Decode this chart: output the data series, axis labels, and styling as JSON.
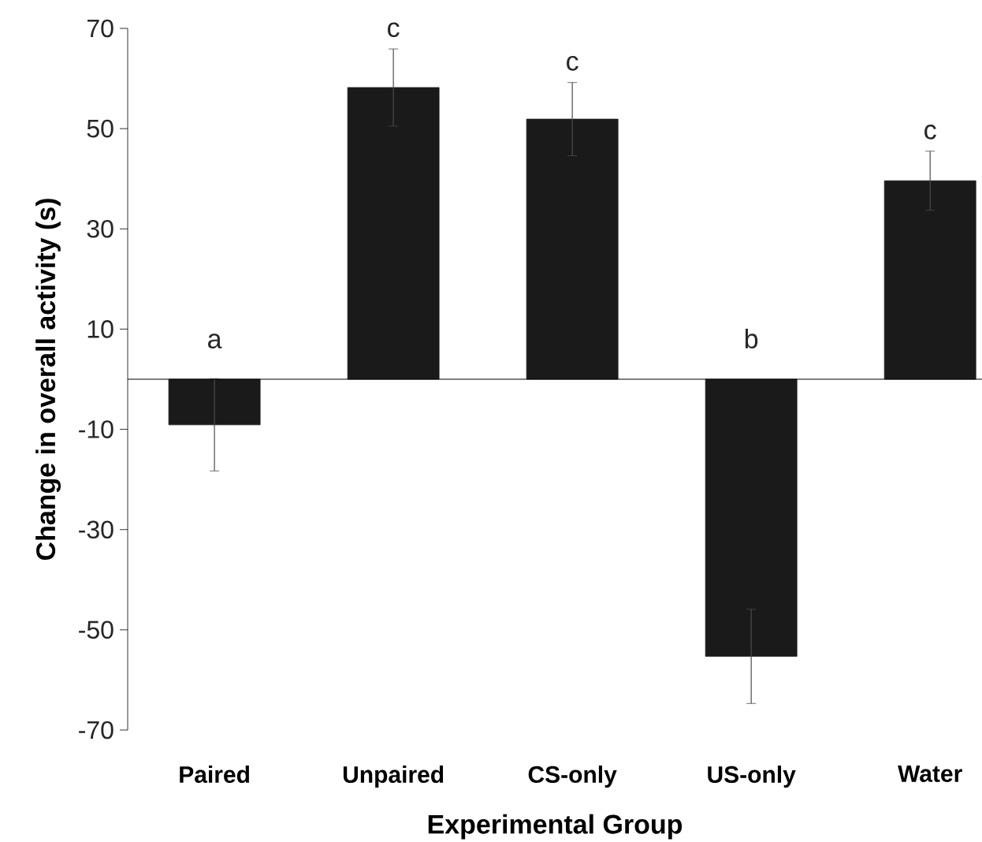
{
  "chart_data": {
    "type": "bar",
    "xlabel": "Experimental Group",
    "ylabel": "Change in overall activity (s)",
    "categories": [
      "Paired",
      "Unpaired",
      "CS-only",
      "US-only",
      "Water"
    ],
    "values": [
      -9.1,
      58.2,
      51.9,
      -55.3,
      39.6
    ],
    "errors": [
      9.2,
      7.7,
      7.3,
      9.4,
      5.9
    ],
    "color": "#1a1a1a",
    "ylim": [
      -70,
      70
    ],
    "yticks": [
      -70,
      -50,
      -30,
      -10,
      10,
      30,
      50,
      70
    ],
    "ref_lines": [
      {
        "axis": "y",
        "value": 0
      }
    ],
    "annotations": [
      "a",
      "c",
      "c",
      "b",
      "c"
    ]
  }
}
